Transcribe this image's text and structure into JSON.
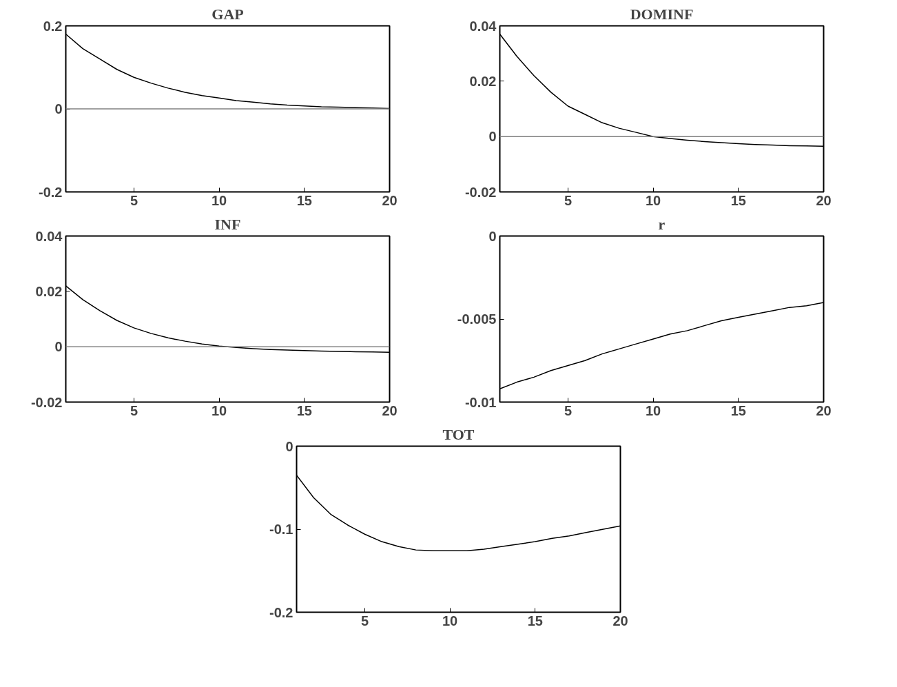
{
  "chart_data": [
    {
      "type": "line",
      "title": "GAP",
      "x": [
        1,
        2,
        3,
        4,
        5,
        6,
        7,
        8,
        9,
        10,
        11,
        12,
        13,
        14,
        15,
        16,
        17,
        18,
        19,
        20
      ],
      "xlim": [
        1,
        20
      ],
      "xticks": [
        5,
        10,
        15,
        20
      ],
      "ylim": [
        -0.2,
        0.2
      ],
      "yticks": [
        -0.2,
        0,
        0.2
      ],
      "grid": false,
      "series": [
        {
          "color": "#000000",
          "values": [
            0.18,
            0.145,
            0.12,
            0.095,
            0.076,
            0.062,
            0.05,
            0.04,
            0.032,
            0.026,
            0.02,
            0.016,
            0.012,
            0.009,
            0.007,
            0.005,
            0.004,
            0.003,
            0.002,
            0.001
          ]
        }
      ],
      "ref_lines": [
        {
          "axis": "y",
          "value": 0,
          "color": "#808080"
        }
      ]
    },
    {
      "type": "line",
      "title": "DOMINF",
      "x": [
        1,
        2,
        3,
        4,
        5,
        6,
        7,
        8,
        9,
        10,
        11,
        12,
        13,
        14,
        15,
        16,
        17,
        18,
        19,
        20
      ],
      "xlim": [
        1,
        20
      ],
      "xticks": [
        5,
        10,
        15,
        20
      ],
      "ylim": [
        -0.02,
        0.04
      ],
      "yticks": [
        -0.02,
        0,
        0.02,
        0.04
      ],
      "grid": false,
      "series": [
        {
          "color": "#000000",
          "values": [
            0.037,
            0.029,
            0.022,
            0.016,
            0.011,
            0.008,
            0.005,
            0.003,
            0.0015,
            0.0,
            -0.0007,
            -0.0013,
            -0.0018,
            -0.0022,
            -0.0026,
            -0.0029,
            -0.0031,
            -0.0033,
            -0.0034,
            -0.0035
          ]
        }
      ],
      "ref_lines": [
        {
          "axis": "y",
          "value": 0,
          "color": "#808080"
        }
      ]
    },
    {
      "type": "line",
      "title": "INF",
      "x": [
        1,
        2,
        3,
        4,
        5,
        6,
        7,
        8,
        9,
        10,
        11,
        12,
        13,
        14,
        15,
        16,
        17,
        18,
        19,
        20
      ],
      "xlim": [
        1,
        20
      ],
      "xticks": [
        5,
        10,
        15,
        20
      ],
      "ylim": [
        -0.02,
        0.04
      ],
      "yticks": [
        -0.02,
        0,
        0.02,
        0.04
      ],
      "grid": false,
      "series": [
        {
          "color": "#000000",
          "values": [
            0.022,
            0.017,
            0.013,
            0.0095,
            0.0068,
            0.0048,
            0.0032,
            0.002,
            0.001,
            0.0002,
            -0.0003,
            -0.0007,
            -0.001,
            -0.0012,
            -0.0014,
            -0.0016,
            -0.0017,
            -0.0018,
            -0.0019,
            -0.002
          ]
        }
      ],
      "ref_lines": [
        {
          "axis": "y",
          "value": 0,
          "color": "#808080"
        }
      ]
    },
    {
      "type": "line",
      "title": "r",
      "x": [
        1,
        2,
        3,
        4,
        5,
        6,
        7,
        8,
        9,
        10,
        11,
        12,
        13,
        14,
        15,
        16,
        17,
        18,
        19,
        20
      ],
      "xlim": [
        1,
        20
      ],
      "xticks": [
        5,
        10,
        15,
        20
      ],
      "ylim": [
        -0.01,
        0
      ],
      "yticks": [
        -0.01,
        -0.005,
        0
      ],
      "grid": false,
      "series": [
        {
          "color": "#000000",
          "values": [
            -0.0092,
            -0.0088,
            -0.0085,
            -0.0081,
            -0.0078,
            -0.0075,
            -0.0071,
            -0.0068,
            -0.0065,
            -0.0062,
            -0.0059,
            -0.0057,
            -0.0054,
            -0.0051,
            -0.0049,
            -0.0047,
            -0.0045,
            -0.0043,
            -0.0042,
            -0.004
          ]
        }
      ]
    },
    {
      "type": "line",
      "title": "TOT",
      "x": [
        1,
        2,
        3,
        4,
        5,
        6,
        7,
        8,
        9,
        10,
        11,
        12,
        13,
        14,
        15,
        16,
        17,
        18,
        19,
        20
      ],
      "xlim": [
        1,
        20
      ],
      "xticks": [
        5,
        10,
        15,
        20
      ],
      "ylim": [
        -0.2,
        0
      ],
      "yticks": [
        -0.2,
        -0.1,
        0
      ],
      "grid": false,
      "series": [
        {
          "color": "#000000",
          "values": [
            -0.035,
            -0.062,
            -0.082,
            -0.095,
            -0.106,
            -0.115,
            -0.121,
            -0.125,
            -0.126,
            -0.126,
            -0.126,
            -0.124,
            -0.121,
            -0.118,
            -0.115,
            -0.111,
            -0.108,
            -0.104,
            -0.1,
            -0.096
          ]
        }
      ]
    }
  ]
}
